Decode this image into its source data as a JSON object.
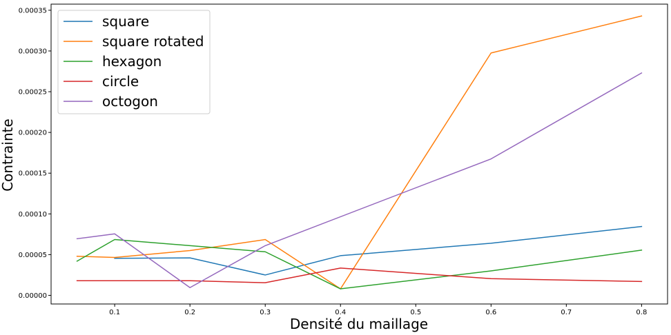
{
  "chart_data": {
    "type": "line",
    "title": "",
    "xlabel": "Densité du maillage",
    "ylabel": "Contrainte",
    "xlim": [
      0.0155,
      0.8345
    ],
    "ylim": [
      -1.06e-05,
      0.0003575
    ],
    "grid": false,
    "legend_position": "top-left",
    "xticks": [
      0.1,
      0.2,
      0.3,
      0.4,
      0.5,
      0.6,
      0.7,
      0.8
    ],
    "xtick_labels": [
      "0.1",
      "0.2",
      "0.3",
      "0.4",
      "0.5",
      "0.6",
      "0.7",
      "0.8"
    ],
    "yticks": [
      0,
      5e-05,
      0.0001,
      0.00015,
      0.0002,
      0.00025,
      0.0003,
      0.00035
    ],
    "ytick_labels": [
      "0.00000",
      "0.00005",
      "0.00010",
      "0.00015",
      "0.00020",
      "0.00025",
      "0.00030",
      "0.00035"
    ],
    "series": [
      {
        "name": "square",
        "color": "#1f77b4",
        "x": [
          0.1,
          0.2,
          0.3,
          0.4,
          0.6,
          0.8
        ],
        "y": [
          4.55e-05,
          4.6e-05,
          2.5e-05,
          4.87e-05,
          6.4e-05,
          8.45e-05
        ]
      },
      {
        "name": "square rotated",
        "color": "#ff7f0e",
        "x": [
          0.05,
          0.1,
          0.2,
          0.3,
          0.4,
          0.6,
          0.8
        ],
        "y": [
          4.8e-05,
          4.65e-05,
          5.5e-05,
          6.85e-05,
          8e-06,
          0.0002975,
          0.000343
        ]
      },
      {
        "name": "hexagon",
        "color": "#2ca02c",
        "x": [
          0.05,
          0.1,
          0.3,
          0.4,
          0.6,
          0.8
        ],
        "y": [
          4.2e-05,
          6.85e-05,
          5.35e-05,
          8e-06,
          3e-05,
          5.55e-05
        ]
      },
      {
        "name": "circle",
        "color": "#d62728",
        "x": [
          0.05,
          0.1,
          0.2,
          0.3,
          0.4,
          0.6,
          0.8
        ],
        "y": [
          1.8e-05,
          1.8e-05,
          1.8e-05,
          1.55e-05,
          3.35e-05,
          2.05e-05,
          1.7e-05
        ]
      },
      {
        "name": "octogon",
        "color": "#9467bd",
        "x": [
          0.05,
          0.1,
          0.2,
          0.3,
          0.6,
          0.8
        ],
        "y": [
          6.95e-05,
          7.55e-05,
          9.5e-06,
          6.1e-05,
          0.0001675,
          0.000273
        ]
      }
    ]
  }
}
